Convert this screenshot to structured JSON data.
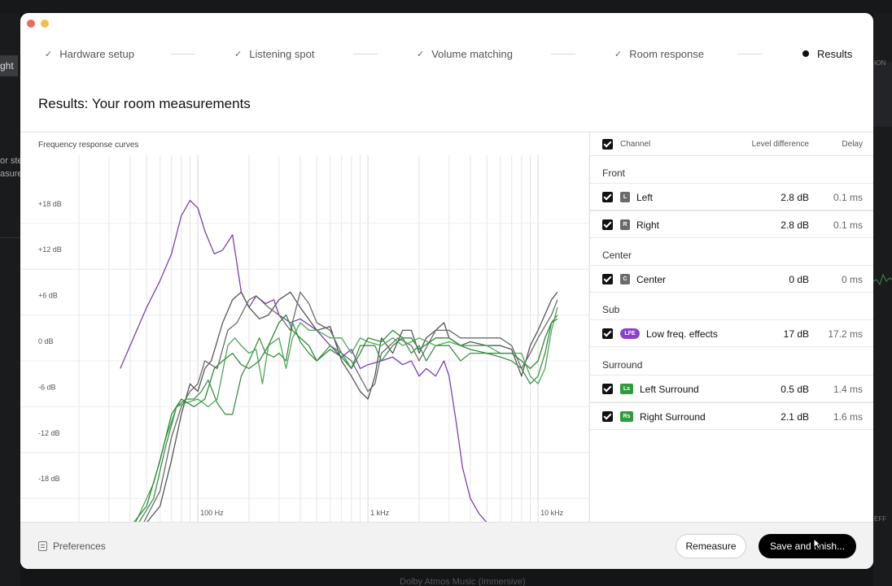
{
  "background": {
    "left_tab": "ght",
    "left_text_1": "or ste",
    "left_text_2": "asure",
    "right_label_1": "ION",
    "right_label_2": "EFF",
    "bottom_text": "Dolby Atmos Music (Immersive)"
  },
  "stepper": {
    "steps": [
      {
        "label": "Hardware setup",
        "state": "done"
      },
      {
        "label": "Listening spot",
        "state": "done"
      },
      {
        "label": "Volume matching",
        "state": "done"
      },
      {
        "label": "Room response",
        "state": "done"
      },
      {
        "label": "Results",
        "state": "active"
      }
    ]
  },
  "page": {
    "title": "Results: Your room measurements"
  },
  "chart_data": {
    "type": "line",
    "title": "Frequency response curves",
    "x_scale": "log",
    "xlim": [
      20,
      20000
    ],
    "x_ticks": [
      {
        "value": 100,
        "label": "100 Hz"
      },
      {
        "value": 1000,
        "label": "1 kHz"
      },
      {
        "value": 10000,
        "label": "10 kHz"
      }
    ],
    "ylim": [
      -24,
      22
    ],
    "y_ticks": [
      {
        "value": 18,
        "label": "+18 dB"
      },
      {
        "value": 12,
        "label": "+12 dB"
      },
      {
        "value": 6,
        "label": "+6 dB"
      },
      {
        "value": 0,
        "label": "0 dB"
      },
      {
        "value": -6,
        "label": "-6 dB"
      },
      {
        "value": -12,
        "label": "-12 dB"
      },
      {
        "value": -18,
        "label": "-18 dB"
      }
    ],
    "grid": true,
    "series": [
      {
        "color": "#7a3fb5",
        "points": [
          [
            35,
            -1
          ],
          [
            40,
            2
          ],
          [
            50,
            7
          ],
          [
            60,
            10.5
          ],
          [
            70,
            14
          ],
          [
            80,
            19
          ],
          [
            90,
            21
          ],
          [
            100,
            20
          ],
          [
            110,
            17
          ],
          [
            125,
            14
          ],
          [
            140,
            14.5
          ],
          [
            160,
            16.5
          ],
          [
            180,
            9
          ],
          [
            200,
            7
          ],
          [
            220,
            8.5
          ],
          [
            250,
            7.5
          ],
          [
            280,
            8
          ],
          [
            300,
            6
          ],
          [
            350,
            5
          ],
          [
            400,
            5.5
          ],
          [
            500,
            4
          ],
          [
            600,
            2
          ],
          [
            700,
            0.5
          ],
          [
            800,
            1.5
          ],
          [
            900,
            -1
          ],
          [
            1000,
            -0.5
          ],
          [
            1200,
            0
          ],
          [
            1400,
            0.5
          ],
          [
            1600,
            -0.5
          ],
          [
            1800,
            0
          ],
          [
            2000,
            -2
          ],
          [
            2200,
            -1
          ],
          [
            2500,
            -2
          ],
          [
            2800,
            0
          ],
          [
            3000,
            -2
          ],
          [
            3300,
            -8
          ],
          [
            3600,
            -14
          ],
          [
            4000,
            -18
          ],
          [
            4500,
            -20
          ],
          [
            5000,
            -21.5
          ],
          [
            5500,
            -22
          ]
        ]
      },
      {
        "color": "#555555",
        "points": [
          [
            50,
            -24
          ],
          [
            60,
            -19
          ],
          [
            70,
            -13
          ],
          [
            80,
            -7
          ],
          [
            90,
            -3
          ],
          [
            100,
            -4
          ],
          [
            110,
            -1
          ],
          [
            120,
            0
          ],
          [
            140,
            5
          ],
          [
            160,
            8
          ],
          [
            180,
            9
          ],
          [
            200,
            7
          ],
          [
            230,
            5.5
          ],
          [
            260,
            6
          ],
          [
            300,
            8
          ],
          [
            350,
            9
          ],
          [
            400,
            7
          ],
          [
            500,
            4
          ],
          [
            600,
            4.5
          ],
          [
            700,
            0
          ],
          [
            800,
            -2
          ],
          [
            900,
            -4
          ],
          [
            1000,
            -5
          ],
          [
            1100,
            -2
          ],
          [
            1200,
            3
          ],
          [
            1400,
            1
          ],
          [
            1600,
            4
          ],
          [
            1800,
            4
          ],
          [
            2000,
            1
          ],
          [
            2200,
            3
          ],
          [
            2500,
            4
          ],
          [
            2800,
            5
          ],
          [
            3000,
            3
          ],
          [
            3500,
            2
          ],
          [
            4000,
            2.5
          ],
          [
            5000,
            2
          ],
          [
            6000,
            2
          ],
          [
            7000,
            1.5
          ],
          [
            8000,
            -2
          ],
          [
            9000,
            2
          ],
          [
            10000,
            4
          ],
          [
            12000,
            8
          ],
          [
            13000,
            9
          ]
        ]
      },
      {
        "color": "#6a6a6a",
        "points": [
          [
            48,
            -24
          ],
          [
            60,
            -17
          ],
          [
            70,
            -10
          ],
          [
            80,
            -6
          ],
          [
            90,
            -4
          ],
          [
            100,
            -3
          ],
          [
            110,
            0
          ],
          [
            130,
            -1
          ],
          [
            150,
            4
          ],
          [
            170,
            5
          ],
          [
            200,
            8
          ],
          [
            220,
            8.5
          ],
          [
            260,
            7
          ],
          [
            300,
            6
          ],
          [
            350,
            4
          ],
          [
            400,
            9
          ],
          [
            450,
            7.5
          ],
          [
            500,
            5
          ],
          [
            600,
            4
          ],
          [
            700,
            1
          ],
          [
            800,
            0
          ],
          [
            1000,
            -4
          ],
          [
            1100,
            -3
          ],
          [
            1200,
            1
          ],
          [
            1500,
            3
          ],
          [
            1800,
            2
          ],
          [
            2000,
            0
          ],
          [
            2500,
            4
          ],
          [
            3000,
            4
          ],
          [
            3500,
            3
          ],
          [
            4000,
            3
          ],
          [
            5000,
            3
          ],
          [
            6000,
            3
          ],
          [
            7000,
            2
          ],
          [
            8000,
            -1
          ],
          [
            9000,
            1
          ],
          [
            10000,
            3
          ],
          [
            12000,
            6
          ],
          [
            13000,
            8
          ]
        ]
      },
      {
        "color": "#3f8f47",
        "points": [
          [
            45,
            -24
          ],
          [
            55,
            -18
          ],
          [
            65,
            -11
          ],
          [
            75,
            -6
          ],
          [
            85,
            -5
          ],
          [
            95,
            -5
          ],
          [
            105,
            -4
          ],
          [
            115,
            -2.5
          ],
          [
            130,
            -5.5
          ],
          [
            145,
            -7
          ],
          [
            160,
            -7
          ],
          [
            180,
            -2
          ],
          [
            200,
            0
          ],
          [
            230,
            3
          ],
          [
            250,
            1
          ],
          [
            280,
            0.5
          ],
          [
            300,
            1
          ],
          [
            330,
            0
          ],
          [
            360,
            5
          ],
          [
            400,
            2.5
          ],
          [
            450,
            1
          ],
          [
            500,
            0
          ],
          [
            600,
            2
          ],
          [
            700,
            1
          ],
          [
            800,
            -1
          ],
          [
            900,
            2
          ],
          [
            1000,
            2
          ],
          [
            1100,
            2
          ],
          [
            1200,
            0
          ],
          [
            1400,
            2
          ],
          [
            1600,
            3
          ],
          [
            1800,
            1
          ],
          [
            2000,
            2
          ],
          [
            2200,
            0
          ],
          [
            2500,
            2
          ],
          [
            3000,
            2
          ],
          [
            3500,
            0
          ],
          [
            4000,
            1
          ],
          [
            5000,
            1
          ],
          [
            6000,
            0.5
          ],
          [
            7000,
            0
          ],
          [
            8000,
            -1
          ],
          [
            9000,
            -3
          ],
          [
            10000,
            -2
          ],
          [
            11000,
            1
          ],
          [
            12000,
            5
          ],
          [
            13000,
            6
          ]
        ]
      },
      {
        "color": "#4ca857",
        "points": [
          [
            43,
            -24
          ],
          [
            55,
            -16
          ],
          [
            65,
            -10
          ],
          [
            75,
            -6
          ],
          [
            85,
            -5.5
          ],
          [
            100,
            -5
          ],
          [
            115,
            -6
          ],
          [
            130,
            -5
          ],
          [
            150,
            2
          ],
          [
            165,
            3
          ],
          [
            180,
            2
          ],
          [
            200,
            1
          ],
          [
            220,
            1.5
          ],
          [
            240,
            -3
          ],
          [
            260,
            2
          ],
          [
            300,
            3
          ],
          [
            330,
            -1
          ],
          [
            360,
            3
          ],
          [
            400,
            5
          ],
          [
            450,
            4
          ],
          [
            500,
            4
          ],
          [
            600,
            3
          ],
          [
            700,
            3
          ],
          [
            800,
            1
          ],
          [
            900,
            3
          ],
          [
            1000,
            2.5
          ],
          [
            1200,
            2
          ],
          [
            1400,
            3
          ],
          [
            1600,
            2
          ],
          [
            1800,
            2.5
          ],
          [
            2000,
            3
          ],
          [
            2500,
            2
          ],
          [
            3000,
            2.5
          ],
          [
            3500,
            2
          ],
          [
            4000,
            2
          ],
          [
            5000,
            2
          ],
          [
            6000,
            1
          ],
          [
            7000,
            1
          ],
          [
            8000,
            1
          ],
          [
            9000,
            -2
          ],
          [
            10000,
            -3
          ],
          [
            11000,
            -1
          ],
          [
            12000,
            4
          ],
          [
            13000,
            7
          ]
        ]
      },
      {
        "color": "#2e8a3a",
        "points": [
          [
            42,
            -24
          ],
          [
            50,
            -19
          ],
          [
            60,
            -13
          ],
          [
            70,
            -7
          ],
          [
            80,
            -5
          ],
          [
            95,
            -6
          ],
          [
            110,
            -5
          ],
          [
            125,
            -1
          ],
          [
            140,
            0
          ],
          [
            160,
            1
          ],
          [
            180,
            -0.5
          ],
          [
            200,
            -1
          ],
          [
            230,
            0
          ],
          [
            260,
            2
          ],
          [
            300,
            5
          ],
          [
            330,
            6
          ],
          [
            360,
            4
          ],
          [
            400,
            3
          ],
          [
            450,
            2
          ],
          [
            500,
            0
          ],
          [
            600,
            1.5
          ],
          [
            700,
            0.5
          ],
          [
            800,
            -1
          ],
          [
            900,
            1
          ],
          [
            1000,
            3
          ],
          [
            1200,
            2.5
          ],
          [
            1400,
            4
          ],
          [
            1600,
            3
          ],
          [
            1800,
            3
          ],
          [
            2000,
            1.5
          ],
          [
            2500,
            3
          ],
          [
            3000,
            3
          ],
          [
            3500,
            2
          ],
          [
            4000,
            1.5
          ],
          [
            5000,
            1
          ],
          [
            6000,
            1
          ],
          [
            7000,
            1
          ],
          [
            8000,
            0
          ],
          [
            9000,
            -1
          ],
          [
            10000,
            0
          ],
          [
            11000,
            3
          ],
          [
            12000,
            5
          ],
          [
            13000,
            5.5
          ]
        ]
      }
    ]
  },
  "table": {
    "headers": {
      "channel": "Channel",
      "level": "Level difference",
      "delay": "Delay"
    },
    "groups": [
      {
        "label": "Front"
      },
      {
        "label": "Center"
      },
      {
        "label": "Sub"
      },
      {
        "label": "Surround"
      }
    ],
    "rows": [
      {
        "badge": "L",
        "name": "Left",
        "level": "2.8 dB",
        "delay": "0.1 ms"
      },
      {
        "badge": "R",
        "name": "Right",
        "level": "2.8 dB",
        "delay": "0.1 ms"
      },
      {
        "badge": "C",
        "name": "Center",
        "level": "0 dB",
        "delay": "0 ms"
      },
      {
        "badge": "LFE",
        "name": "Low freq. effects",
        "level": "17 dB",
        "delay": "17.2 ms"
      },
      {
        "badge": "Ls",
        "name": "Left Surround",
        "level": "0.5 dB",
        "delay": "1.4 ms"
      },
      {
        "badge": "Rs",
        "name": "Right Surround",
        "level": "2.1 dB",
        "delay": "1.6 ms"
      }
    ]
  },
  "footer": {
    "preferences_label": "Preferences",
    "remeasure_label": "Remeasure",
    "save_label": "Save and finish..."
  }
}
